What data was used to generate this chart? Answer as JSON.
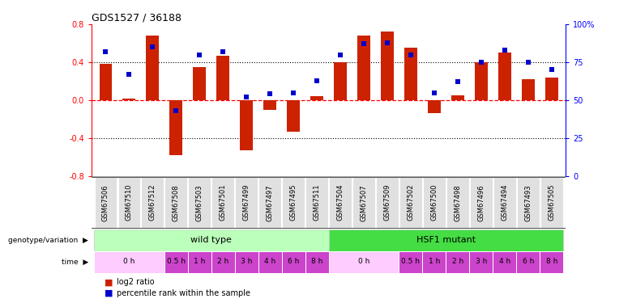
{
  "title": "GDS1527 / 36188",
  "samples": [
    "GSM67506",
    "GSM67510",
    "GSM67512",
    "GSM67508",
    "GSM67503",
    "GSM67501",
    "GSM67499",
    "GSM67497",
    "GSM67495",
    "GSM67511",
    "GSM67504",
    "GSM67507",
    "GSM67509",
    "GSM67502",
    "GSM67500",
    "GSM67498",
    "GSM67496",
    "GSM67494",
    "GSM67493",
    "GSM67505"
  ],
  "log2_ratio": [
    0.38,
    0.02,
    0.68,
    -0.58,
    0.35,
    0.47,
    -0.53,
    -0.1,
    -0.33,
    0.04,
    0.4,
    0.68,
    0.72,
    0.55,
    -0.14,
    0.05,
    0.4,
    0.5,
    0.22,
    0.24
  ],
  "percentile_rank": [
    82,
    67,
    85,
    43,
    80,
    82,
    52,
    54,
    55,
    63,
    80,
    87,
    88,
    80,
    55,
    62,
    75,
    83,
    75,
    70
  ],
  "wt_count": 10,
  "bar_color": "#cc2200",
  "dot_color": "#0000cc",
  "ylim": [
    -0.8,
    0.8
  ],
  "yticks_left": [
    -0.8,
    -0.4,
    0.0,
    0.4,
    0.8
  ],
  "yticks_right": [
    0,
    25,
    50,
    75,
    100
  ],
  "wt_time": [
    [
      0,
      3,
      "0 h"
    ],
    [
      3,
      1,
      "0.5 h"
    ],
    [
      4,
      1,
      "1 h"
    ],
    [
      5,
      1,
      "2 h"
    ],
    [
      6,
      1,
      "3 h"
    ],
    [
      7,
      1,
      "4 h"
    ],
    [
      8,
      1,
      "6 h"
    ],
    [
      9,
      1,
      "8 h"
    ]
  ],
  "hsf_time": [
    [
      10,
      3,
      "0 h"
    ],
    [
      13,
      1,
      "0.5 h"
    ],
    [
      14,
      1,
      "1 h"
    ],
    [
      15,
      1,
      "2 h"
    ],
    [
      16,
      1,
      "3 h"
    ],
    [
      17,
      1,
      "4 h"
    ],
    [
      18,
      1,
      "6 h"
    ],
    [
      19,
      1,
      "8 h"
    ]
  ],
  "light_pink": "#ffccff",
  "dark_pink": "#cc44cc",
  "wt_green": "#bbffbb",
  "hsf_green": "#44dd44",
  "sample_box_color": "#dddddd",
  "legend_bar_label": "log2 ratio",
  "legend_dot_label": "percentile rank within the sample"
}
